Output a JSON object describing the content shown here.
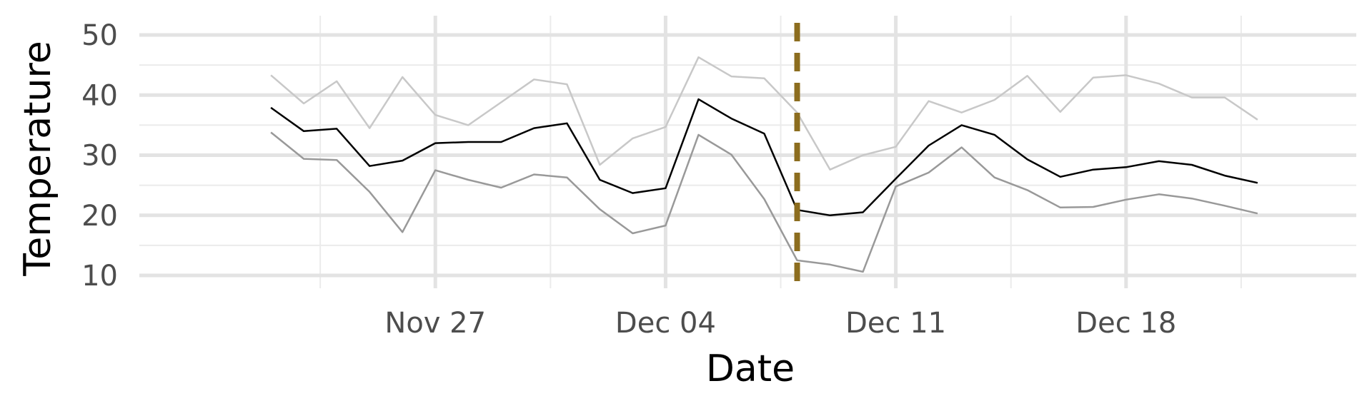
{
  "chart_data": {
    "type": "line",
    "title": "",
    "xlabel": "Date",
    "ylabel": "Temperature",
    "ylim": [
      10,
      50
    ],
    "xlim": [
      "2023-11-18",
      "2023-12-25"
    ],
    "x_ticks": [
      {
        "date": "2023-11-27",
        "label": "Nov 27"
      },
      {
        "date": "2023-12-04",
        "label": "Dec 04"
      },
      {
        "date": "2023-12-11",
        "label": "Dec 11"
      },
      {
        "date": "2023-12-18",
        "label": "Dec 18"
      }
    ],
    "y_ticks": [
      {
        "value": 10,
        "label": "10"
      },
      {
        "value": 20,
        "label": "20"
      },
      {
        "value": 30,
        "label": "30"
      },
      {
        "value": 40,
        "label": "40"
      },
      {
        "value": 50,
        "label": "50"
      }
    ],
    "vline": {
      "date": "2023-12-08",
      "color": "#8c6d1f",
      "style": "dashed"
    },
    "grid": true,
    "legend": "none",
    "x": [
      "2023-11-22",
      "2023-11-23",
      "2023-11-24",
      "2023-11-25",
      "2023-11-26",
      "2023-11-27",
      "2023-11-28",
      "2023-11-29",
      "2023-11-30",
      "2023-12-01",
      "2023-12-02",
      "2023-12-03",
      "2023-12-04",
      "2023-12-05",
      "2023-12-06",
      "2023-12-07",
      "2023-12-08",
      "2023-12-09",
      "2023-12-10",
      "2023-12-11",
      "2023-12-12",
      "2023-12-13",
      "2023-12-14",
      "2023-12-15",
      "2023-12-16",
      "2023-12-17",
      "2023-12-18",
      "2023-12-19",
      "2023-12-20",
      "2023-12-21",
      "2023-12-22",
      "2023-12-23"
    ],
    "series": [
      {
        "color": "#c8c8c8",
        "width": 2.5,
        "values": [
          43.3,
          38.6,
          42.3,
          34.5,
          43.0,
          36.7,
          35.0,
          38.8,
          42.6,
          41.8,
          28.4,
          32.8,
          34.7,
          46.3,
          43.1,
          42.8,
          37.1,
          27.6,
          30.0,
          31.4,
          39.0,
          37.1,
          39.2,
          43.2,
          37.2,
          42.9,
          43.3,
          41.9,
          39.6,
          39.6,
          35.9,
          null
        ]
      },
      {
        "color": "#000000",
        "width": 2.5,
        "values": [
          37.9,
          34.0,
          34.4,
          28.2,
          29.1,
          32.0,
          32.2,
          32.2,
          34.5,
          35.3,
          25.9,
          23.7,
          24.5,
          39.3,
          36.1,
          33.6,
          20.9,
          20.0,
          20.5,
          26.1,
          31.6,
          35.0,
          33.4,
          29.3,
          26.4,
          27.6,
          28.0,
          29.0,
          28.4,
          26.6,
          25.4,
          null
        ]
      },
      {
        "color": "#999999",
        "width": 2.5,
        "values": [
          33.8,
          29.4,
          29.2,
          23.9,
          17.2,
          27.5,
          25.9,
          24.6,
          26.8,
          26.3,
          21.0,
          17.0,
          18.3,
          33.4,
          30.1,
          22.7,
          12.5,
          11.8,
          10.6,
          24.8,
          27.1,
          31.3,
          26.3,
          24.2,
          21.3,
          21.4,
          22.6,
          23.5,
          22.8,
          21.6,
          20.3,
          null
        ]
      }
    ]
  }
}
